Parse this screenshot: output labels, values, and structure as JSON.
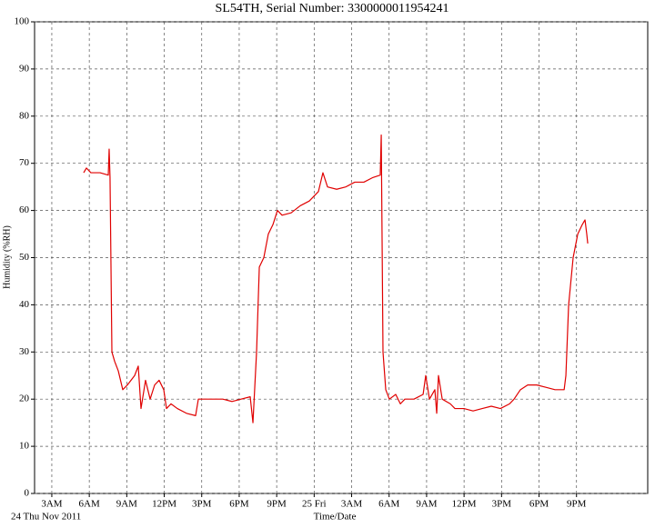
{
  "chart_data": {
    "type": "line",
    "title": "SL54TH,  Serial Number: 3300000011954241",
    "y_label": "Humidity (%RH)",
    "x_label": "Time/Date",
    "date_label": "24 Thu Nov 2011",
    "color": "#e00000",
    "grid": true,
    "xlim": [
      1.62,
      50.7
    ],
    "ylim": [
      0,
      100
    ],
    "yticks": [
      0,
      10,
      20,
      30,
      40,
      50,
      60,
      70,
      80,
      90,
      100
    ],
    "xticks": [
      {
        "value": 3,
        "label": "3AM"
      },
      {
        "value": 6,
        "label": "6AM"
      },
      {
        "value": 9,
        "label": "9AM"
      },
      {
        "value": 12,
        "label": "12PM"
      },
      {
        "value": 15,
        "label": "3PM"
      },
      {
        "value": 18,
        "label": "6PM"
      },
      {
        "value": 21,
        "label": "9PM"
      },
      {
        "value": 24,
        "label": "25 Fri"
      },
      {
        "value": 27,
        "label": "3AM"
      },
      {
        "value": 30,
        "label": "6AM"
      },
      {
        "value": 33,
        "label": "9AM"
      },
      {
        "value": 36,
        "label": "12PM"
      },
      {
        "value": 39,
        "label": "3PM"
      },
      {
        "value": 42,
        "label": "6PM"
      },
      {
        "value": 45,
        "label": "9PM"
      }
    ],
    "x": [
      5.55,
      5.77,
      6.13,
      6.86,
      7.52,
      7.59,
      7.66,
      7.81,
      8.03,
      8.32,
      8.68,
      9.05,
      9.63,
      9.92,
      10.14,
      10.5,
      10.87,
      11.23,
      11.59,
      11.96,
      12.18,
      12.54,
      13.05,
      13.78,
      14.51,
      14.73,
      15.24,
      15.96,
      16.69,
      17.42,
      18.15,
      18.88,
      19.1,
      19.39,
      19.61,
      19.97,
      20.33,
      20.7,
      21.06,
      21.43,
      22.16,
      22.88,
      23.61,
      24.34,
      24.7,
      25.07,
      25.8,
      26.53,
      27.25,
      27.98,
      28.71,
      29.29,
      29.37,
      29.51,
      29.73,
      30.02,
      30.53,
      30.9,
      31.26,
      31.99,
      32.72,
      32.93,
      33.23,
      33.66,
      33.81,
      33.95,
      34.25,
      34.9,
      35.27,
      35.99,
      36.72,
      37.45,
      38.18,
      38.91,
      39.64,
      40,
      40.51,
      41.09,
      41.82,
      42.55,
      43.28,
      44.01,
      44.15,
      44.37,
      44.73,
      45.1,
      45.46,
      45.68,
      45.82,
      45.9
    ],
    "values": [
      68,
      69,
      68,
      68,
      67.5,
      73,
      67,
      30,
      28,
      26,
      22,
      23,
      25,
      27,
      18,
      24,
      20,
      23,
      24,
      22,
      18,
      19,
      18,
      17,
      16.5,
      20,
      20,
      20,
      20,
      19.5,
      20,
      20.5,
      15,
      30,
      48,
      50,
      55,
      57,
      60,
      59,
      59.5,
      61,
      62,
      64,
      68,
      65,
      64.5,
      65,
      66,
      66,
      67,
      67.5,
      76,
      30,
      22,
      20,
      21,
      19,
      20,
      20,
      21,
      25,
      20,
      22,
      17,
      25,
      20,
      19,
      18,
      18,
      17.5,
      18,
      18.5,
      18,
      19,
      20,
      22,
      23,
      23,
      22.5,
      22,
      22,
      25,
      40,
      50,
      55,
      57,
      58,
      55,
      53
    ]
  }
}
